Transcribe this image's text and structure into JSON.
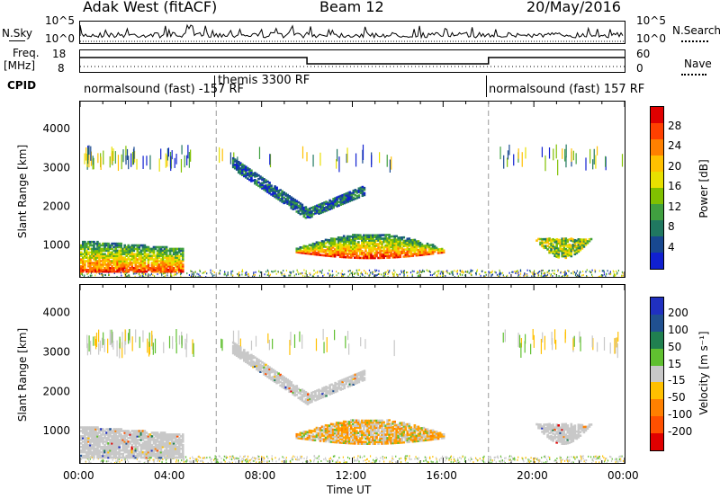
{
  "header": {
    "station": "Adak West (fitACF)",
    "beam": "Beam 12",
    "date": "20/May/2016"
  },
  "top_panels": {
    "nsky_label": "N.Sky",
    "nsearch_label": "N.Search",
    "freq_label": "Freq.",
    "freq_unit": "[MHz]",
    "nave_label": "Nave",
    "cpid_label": "CPID",
    "nsky_ticks": [
      "10^5",
      "10^0"
    ],
    "nsearch_ticks": [
      "10^5",
      "10^0"
    ],
    "freq_ticks": [
      "18",
      "8"
    ],
    "nave_ticks": [
      "60",
      "0"
    ],
    "cpid_segments": [
      {
        "label": "normalsound (fast) -157 RF",
        "start": 0,
        "end": 6
      },
      {
        "label": "themis 3300 RF",
        "start": 6,
        "end": 18
      },
      {
        "label": "normalsound (fast) 157 RF",
        "start": 18,
        "end": 24
      }
    ]
  },
  "colorbars": {
    "power": {
      "label": "Power [dB]",
      "ticks": [
        "28",
        "24",
        "20",
        "16",
        "12",
        "8",
        "4"
      ],
      "colors": [
        "#e00000",
        "#ff4000",
        "#ff8000",
        "#ffc000",
        "#e8e000",
        "#80c000",
        "#40a040",
        "#207860",
        "#184890",
        "#1020d0"
      ]
    },
    "velocity": {
      "label": "Velocity [m s⁻¹]",
      "ticks": [
        "200",
        "100",
        "50",
        "15",
        "-15",
        "-50",
        "-100",
        "-200"
      ],
      "colors": [
        "#2030c0",
        "#205090",
        "#208050",
        "#60c030",
        "#c8c8c8",
        "#ffc000",
        "#ff8000",
        "#ff5000",
        "#e00000"
      ]
    }
  },
  "chart_data": {
    "type": "heatmap",
    "title": "Adak West (fitACF) Beam 12 20/May/2016",
    "xlabel": "Time UT",
    "ylabel": "Slant Range [km]",
    "x_ticks": [
      "00:00",
      "04:00",
      "08:00",
      "12:00",
      "16:00",
      "20:00",
      "00:00"
    ],
    "y_ticks": [
      "1000",
      "2000",
      "3000",
      "4000"
    ],
    "xlim": [
      0,
      24
    ],
    "ylim": [
      180,
      4700
    ],
    "echo_regions": [
      {
        "name": "near-range morning echoes",
        "t_start": 0,
        "t_end": 4.5,
        "range_start": 300,
        "range_end": 1100
      },
      {
        "name": "descending far echo",
        "t_start": 6.7,
        "t_end": 10,
        "range_start": 1600,
        "range_end": 3200
      },
      {
        "name": "rising far echo",
        "t_start": 10,
        "t_end": 12.5,
        "range_start": 1700,
        "range_end": 2500
      },
      {
        "name": "mid-day near echoes",
        "t_start": 9.5,
        "t_end": 16,
        "range_start": 600,
        "range_end": 1300
      },
      {
        "name": "evening near echoes",
        "t_start": 20,
        "t_end": 22.5,
        "range_start": 600,
        "range_end": 1200
      }
    ]
  }
}
